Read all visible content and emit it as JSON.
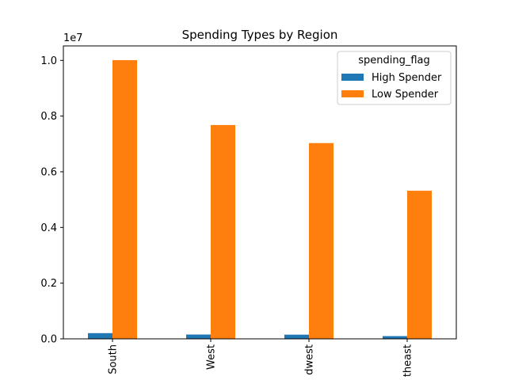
{
  "chart_data": {
    "type": "bar",
    "title": "Spending Types by Region",
    "xlabel": "",
    "ylabel": "",
    "offset_label": "1e7",
    "scale": 10000000,
    "categories": [
      "South",
      "West",
      "Midwest",
      "Northeast"
    ],
    "visible_category_labels": [
      "South",
      "West",
      "dwest",
      "theast"
    ],
    "series": [
      {
        "name": "High Spender",
        "color": "#1f77b4",
        "values": [
          205000,
          155000,
          150000,
          98000
        ]
      },
      {
        "name": "Low Spender",
        "color": "#ff7f0e",
        "values": [
          10010000,
          7680000,
          7030000,
          5320000
        ]
      }
    ],
    "ylim": [
      0,
      10520000
    ],
    "yticks": [
      0.0,
      0.2,
      0.4,
      0.6,
      0.8,
      1.0
    ],
    "ytick_labels": [
      "0.0",
      "0.2",
      "0.4",
      "0.6",
      "0.8",
      "1.0"
    ],
    "legend": {
      "title": "spending_flag",
      "position": "top-right"
    },
    "grid": false
  }
}
